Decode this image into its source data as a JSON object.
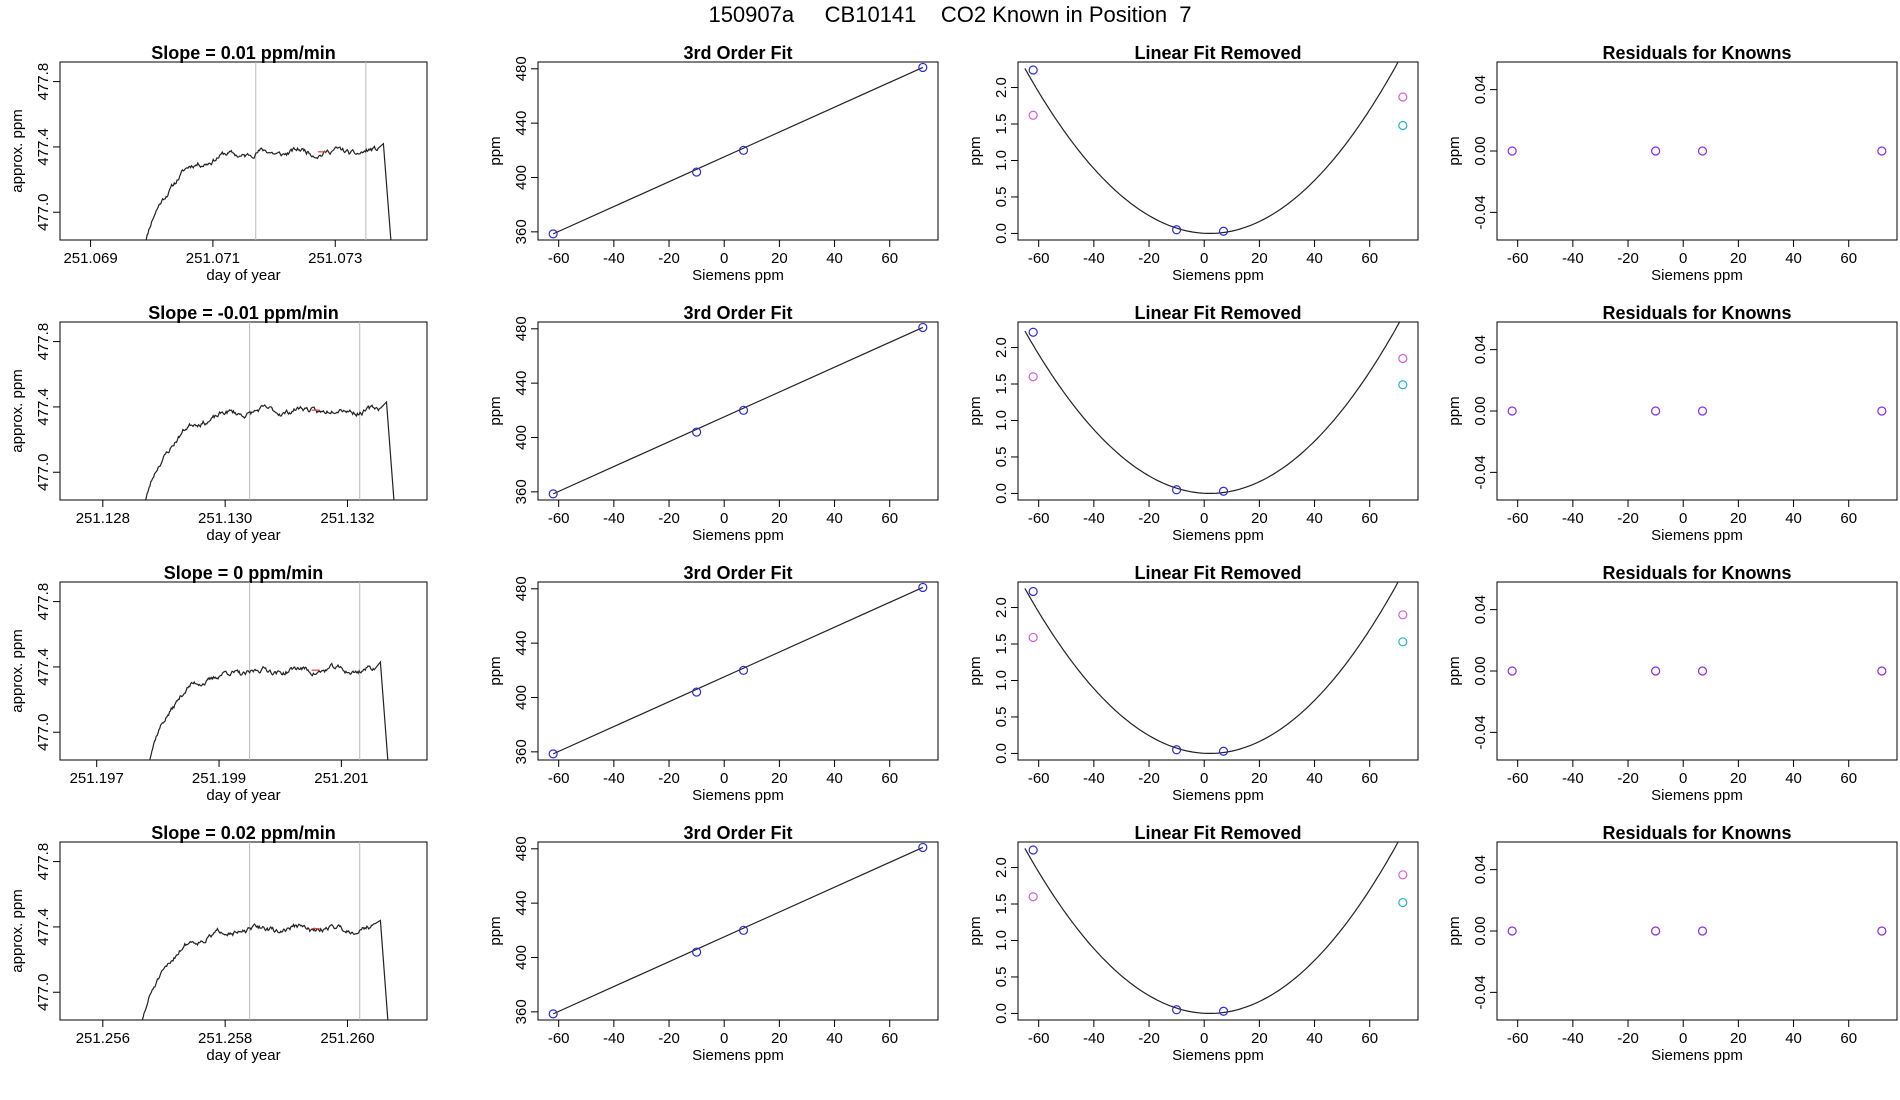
{
  "figure_title": "150907a     CB10141    CO2 Known in Position  7",
  "colors": {
    "axis": "#000000",
    "curve": "#222222",
    "vline": "#bbbbbb",
    "blue": "#2b2bd9",
    "magenta": "#d65cd6",
    "cyan": "#20b6c8",
    "purple": "#8a2be2",
    "red": "#e04040"
  },
  "chart_data": [
    {
      "type": "line",
      "title": "Slope =  0.01  ppm/min",
      "xlabel": "day of year",
      "ylabel": "approx. ppm",
      "xlim": [
        251.0685,
        251.0745
      ],
      "ylim": [
        476.83,
        477.92
      ],
      "xticks": [
        251.069,
        251.071,
        251.073
      ],
      "xtick_labels": [
        "251.069",
        "251.071",
        "251.073"
      ],
      "yticks": [
        477.0,
        477.4,
        477.8
      ],
      "ytick_labels": [
        "477.0",
        "477.4",
        "477.8"
      ],
      "vlines": [
        251.0717,
        251.0735
      ],
      "trace": {
        "x_start": 251.06985,
        "x_plateau": 251.0737,
        "x_end": 251.07395,
        "level": 477.37,
        "rise_start": 476.75,
        "seed": 11
      }
    },
    {
      "type": "line",
      "title": "3rd Order Fit",
      "xlabel": "Siemens ppm",
      "ylabel": "ppm",
      "xlim": [
        -67.5,
        77.5
      ],
      "ylim": [
        354,
        485
      ],
      "xticks": [
        -60,
        -40,
        -20,
        0,
        20,
        40,
        60
      ],
      "xtick_labels": [
        "-60",
        "-40",
        "-20",
        "0",
        "20",
        "40",
        "60"
      ],
      "yticks": [
        360,
        400,
        440,
        480
      ],
      "ytick_labels": [
        "360",
        "400",
        "440",
        "480"
      ],
      "line": {
        "x": [
          -62,
          72
        ],
        "y": [
          358.5,
          481
        ]
      },
      "points": [
        {
          "x": -62,
          "y": 358.5,
          "color": "blue"
        },
        {
          "x": -10,
          "y": 404,
          "color": "blue"
        },
        {
          "x": 7,
          "y": 420,
          "color": "blue"
        },
        {
          "x": 72,
          "y": 481,
          "color": "blue"
        }
      ]
    },
    {
      "type": "scatter",
      "title": "Linear Fit Removed",
      "xlabel": "Siemens ppm",
      "ylabel": "ppm",
      "xlim": [
        -67.5,
        77.5
      ],
      "ylim": [
        -0.09,
        2.35
      ],
      "xticks": [
        -60,
        -40,
        -20,
        0,
        20,
        40,
        60
      ],
      "xtick_labels": [
        "-60",
        "-40",
        "-20",
        "0",
        "20",
        "40",
        "60"
      ],
      "yticks": [
        0.0,
        0.5,
        1.0,
        1.5,
        2.0
      ],
      "ytick_labels": [
        "0.0",
        "0.5",
        "1.0",
        "1.5",
        "2.0"
      ],
      "curve": {
        "a": 0.000504,
        "h": 2,
        "k": 0.0
      },
      "points": [
        {
          "x": -62,
          "y": 2.24,
          "color": "blue"
        },
        {
          "x": -62,
          "y": 1.62,
          "color": "magenta"
        },
        {
          "x": -10,
          "y": 0.05,
          "color": "blue"
        },
        {
          "x": 7,
          "y": 0.03,
          "color": "blue"
        },
        {
          "x": 72,
          "y": 1.87,
          "color": "magenta"
        },
        {
          "x": 72,
          "y": 1.48,
          "color": "cyan"
        }
      ]
    },
    {
      "type": "scatter",
      "title": "Residuals for Knowns",
      "xlabel": "Siemens ppm",
      "ylabel": "ppm",
      "xlim": [
        -67.5,
        77.5
      ],
      "ylim": [
        -0.058,
        0.058
      ],
      "xticks": [
        -60,
        -40,
        -20,
        0,
        20,
        40,
        60
      ],
      "xtick_labels": [
        "-60",
        "-40",
        "-20",
        "0",
        "20",
        "40",
        "60"
      ],
      "yticks": [
        -0.04,
        0.0,
        0.04
      ],
      "ytick_labels": [
        "-0.04",
        "0.00",
        "0.04"
      ],
      "points": [
        {
          "x": -62,
          "y": 0,
          "color": "purple"
        },
        {
          "x": -10,
          "y": 0,
          "color": "purple"
        },
        {
          "x": 7,
          "y": 0,
          "color": "purple"
        },
        {
          "x": 72,
          "y": 0,
          "color": "purple"
        }
      ]
    },
    {
      "type": "line",
      "title": "Slope =  -0.01  ppm/min",
      "xlabel": "day of year",
      "ylabel": "approx. ppm",
      "xlim": [
        251.1273,
        251.1333
      ],
      "ylim": [
        476.83,
        477.92
      ],
      "xticks": [
        251.128,
        251.13,
        251.132
      ],
      "xtick_labels": [
        "251.128",
        "251.130",
        "251.132"
      ],
      "yticks": [
        477.0,
        477.4,
        477.8
      ],
      "ytick_labels": [
        "477.0",
        "477.4",
        "477.8"
      ],
      "vlines": [
        251.1304,
        251.1322
      ],
      "trace": {
        "x_start": 251.12865,
        "x_plateau": 251.13255,
        "x_end": 251.1328,
        "level": 477.38,
        "rise_start": 476.75,
        "seed": 23
      }
    },
    {
      "type": "line",
      "title": "3rd Order Fit",
      "xlabel": "Siemens ppm",
      "ylabel": "ppm",
      "xlim": [
        -67.5,
        77.5
      ],
      "ylim": [
        354,
        485
      ],
      "xticks": [
        -60,
        -40,
        -20,
        0,
        20,
        40,
        60
      ],
      "xtick_labels": [
        "-60",
        "-40",
        "-20",
        "0",
        "20",
        "40",
        "60"
      ],
      "yticks": [
        360,
        400,
        440,
        480
      ],
      "ytick_labels": [
        "360",
        "400",
        "440",
        "480"
      ],
      "line": {
        "x": [
          -62,
          72
        ],
        "y": [
          358.5,
          481
        ]
      },
      "points": [
        {
          "x": -62,
          "y": 358.5,
          "color": "blue"
        },
        {
          "x": -10,
          "y": 404,
          "color": "blue"
        },
        {
          "x": 7,
          "y": 420,
          "color": "blue"
        },
        {
          "x": 72,
          "y": 481,
          "color": "blue"
        }
      ]
    },
    {
      "type": "scatter",
      "title": "Linear Fit Removed",
      "xlabel": "Siemens ppm",
      "ylabel": "ppm",
      "xlim": [
        -67.5,
        77.5
      ],
      "ylim": [
        -0.09,
        2.35
      ],
      "xticks": [
        -60,
        -40,
        -20,
        0,
        20,
        40,
        60
      ],
      "xtick_labels": [
        "-60",
        "-40",
        "-20",
        "0",
        "20",
        "40",
        "60"
      ],
      "yticks": [
        0.0,
        0.5,
        1.0,
        1.5,
        2.0
      ],
      "ytick_labels": [
        "0.0",
        "0.5",
        "1.0",
        "1.5",
        "2.0"
      ],
      "curve": {
        "a": 0.000496,
        "h": 2,
        "k": 0.0
      },
      "points": [
        {
          "x": -62,
          "y": 2.21,
          "color": "blue"
        },
        {
          "x": -62,
          "y": 1.6,
          "color": "magenta"
        },
        {
          "x": -10,
          "y": 0.05,
          "color": "blue"
        },
        {
          "x": 7,
          "y": 0.03,
          "color": "blue"
        },
        {
          "x": 72,
          "y": 1.85,
          "color": "magenta"
        },
        {
          "x": 72,
          "y": 1.49,
          "color": "cyan"
        }
      ]
    },
    {
      "type": "scatter",
      "title": "Residuals for Knowns",
      "xlabel": "Siemens ppm",
      "ylabel": "ppm",
      "xlim": [
        -67.5,
        77.5
      ],
      "ylim": [
        -0.058,
        0.058
      ],
      "xticks": [
        -60,
        -40,
        -20,
        0,
        20,
        40,
        60
      ],
      "xtick_labels": [
        "-60",
        "-40",
        "-20",
        "0",
        "20",
        "40",
        "60"
      ],
      "yticks": [
        -0.04,
        0.0,
        0.04
      ],
      "ytick_labels": [
        "-0.04",
        "0.00",
        "0.04"
      ],
      "points": [
        {
          "x": -62,
          "y": 0,
          "color": "purple"
        },
        {
          "x": -10,
          "y": 0,
          "color": "purple"
        },
        {
          "x": 7,
          "y": 0,
          "color": "purple"
        },
        {
          "x": 72,
          "y": 0,
          "color": "purple"
        }
      ]
    },
    {
      "type": "line",
      "title": "Slope =  0  ppm/min",
      "xlabel": "day of year",
      "ylabel": "approx. ppm",
      "xlim": [
        251.1964,
        251.2024
      ],
      "ylim": [
        476.83,
        477.92
      ],
      "xticks": [
        251.197,
        251.199,
        251.201
      ],
      "xtick_labels": [
        "251.197",
        "251.199",
        "251.201"
      ],
      "yticks": [
        477.0,
        477.4,
        477.8
      ],
      "ytick_labels": [
        "477.0",
        "477.4",
        "477.8"
      ],
      "vlines": [
        251.1995,
        251.2013
      ],
      "trace": {
        "x_start": 251.1978,
        "x_plateau": 251.20155,
        "x_end": 251.2018,
        "level": 477.38,
        "rise_start": 476.75,
        "seed": 37
      }
    },
    {
      "type": "line",
      "title": "3rd Order Fit",
      "xlabel": "Siemens ppm",
      "ylabel": "ppm",
      "xlim": [
        -67.5,
        77.5
      ],
      "ylim": [
        354,
        485
      ],
      "xticks": [
        -60,
        -40,
        -20,
        0,
        20,
        40,
        60
      ],
      "xtick_labels": [
        "-60",
        "-40",
        "-20",
        "0",
        "20",
        "40",
        "60"
      ],
      "yticks": [
        360,
        400,
        440,
        480
      ],
      "ytick_labels": [
        "360",
        "400",
        "440",
        "480"
      ],
      "line": {
        "x": [
          -62,
          72
        ],
        "y": [
          358.5,
          481
        ]
      },
      "points": [
        {
          "x": -62,
          "y": 358.5,
          "color": "blue"
        },
        {
          "x": -10,
          "y": 404,
          "color": "blue"
        },
        {
          "x": 7,
          "y": 420,
          "color": "blue"
        },
        {
          "x": 72,
          "y": 481,
          "color": "blue"
        }
      ]
    },
    {
      "type": "scatter",
      "title": "Linear Fit Removed",
      "xlabel": "Siemens ppm",
      "ylabel": "ppm",
      "xlim": [
        -67.5,
        77.5
      ],
      "ylim": [
        -0.09,
        2.35
      ],
      "xticks": [
        -60,
        -40,
        -20,
        0,
        20,
        40,
        60
      ],
      "xtick_labels": [
        "-60",
        "-40",
        "-20",
        "0",
        "20",
        "40",
        "60"
      ],
      "yticks": [
        0.0,
        0.5,
        1.0,
        1.5,
        2.0
      ],
      "ytick_labels": [
        "0.0",
        "0.5",
        "1.0",
        "1.5",
        "2.0"
      ],
      "curve": {
        "a": 0.000504,
        "h": 2,
        "k": 0.0
      },
      "points": [
        {
          "x": -62,
          "y": 2.22,
          "color": "blue"
        },
        {
          "x": -62,
          "y": 1.59,
          "color": "magenta"
        },
        {
          "x": -10,
          "y": 0.05,
          "color": "blue"
        },
        {
          "x": 7,
          "y": 0.03,
          "color": "blue"
        },
        {
          "x": 72,
          "y": 1.9,
          "color": "magenta"
        },
        {
          "x": 72,
          "y": 1.53,
          "color": "cyan"
        }
      ]
    },
    {
      "type": "scatter",
      "title": "Residuals for Knowns",
      "xlabel": "Siemens ppm",
      "ylabel": "ppm",
      "xlim": [
        -67.5,
        77.5
      ],
      "ylim": [
        -0.058,
        0.058
      ],
      "xticks": [
        -60,
        -40,
        -20,
        0,
        20,
        40,
        60
      ],
      "xtick_labels": [
        "-60",
        "-40",
        "-20",
        "0",
        "20",
        "40",
        "60"
      ],
      "yticks": [
        -0.04,
        0.0,
        0.04
      ],
      "ytick_labels": [
        "-0.04",
        "0.00",
        "0.04"
      ],
      "points": [
        {
          "x": -62,
          "y": 0,
          "color": "purple"
        },
        {
          "x": -10,
          "y": 0,
          "color": "purple"
        },
        {
          "x": 7,
          "y": 0,
          "color": "purple"
        },
        {
          "x": 72,
          "y": 0,
          "color": "purple"
        }
      ]
    },
    {
      "type": "line",
      "title": "Slope =  0.02  ppm/min",
      "xlabel": "day of year",
      "ylabel": "approx. ppm",
      "xlim": [
        251.2553,
        251.2613
      ],
      "ylim": [
        476.83,
        477.92
      ],
      "xticks": [
        251.256,
        251.258,
        251.26
      ],
      "xtick_labels": [
        "251.256",
        "251.258",
        "251.260"
      ],
      "yticks": [
        477.0,
        477.4,
        477.8
      ],
      "ytick_labels": [
        "477.0",
        "477.4",
        "477.8"
      ],
      "vlines": [
        251.2584,
        251.2602
      ],
      "trace": {
        "x_start": 251.2566,
        "x_plateau": 251.26045,
        "x_end": 251.2607,
        "level": 477.39,
        "rise_start": 476.75,
        "seed": 51
      }
    },
    {
      "type": "line",
      "title": "3rd Order Fit",
      "xlabel": "Siemens ppm",
      "ylabel": "ppm",
      "xlim": [
        -67.5,
        77.5
      ],
      "ylim": [
        354,
        485
      ],
      "xticks": [
        -60,
        -40,
        -20,
        0,
        20,
        40,
        60
      ],
      "xtick_labels": [
        "-60",
        "-40",
        "-20",
        "0",
        "20",
        "40",
        "60"
      ],
      "yticks": [
        360,
        400,
        440,
        480
      ],
      "ytick_labels": [
        "360",
        "400",
        "440",
        "480"
      ],
      "line": {
        "x": [
          -62,
          72
        ],
        "y": [
          358.5,
          481
        ]
      },
      "points": [
        {
          "x": -62,
          "y": 358.5,
          "color": "blue"
        },
        {
          "x": -10,
          "y": 404,
          "color": "blue"
        },
        {
          "x": 7,
          "y": 420,
          "color": "blue"
        },
        {
          "x": 72,
          "y": 481,
          "color": "blue"
        }
      ]
    },
    {
      "type": "scatter",
      "title": "Linear Fit Removed",
      "xlabel": "Siemens ppm",
      "ylabel": "ppm",
      "xlim": [
        -67.5,
        77.5
      ],
      "ylim": [
        -0.09,
        2.35
      ],
      "xticks": [
        -60,
        -40,
        -20,
        0,
        20,
        40,
        60
      ],
      "xtick_labels": [
        "-60",
        "-40",
        "-20",
        "0",
        "20",
        "40",
        "60"
      ],
      "yticks": [
        0.0,
        0.5,
        1.0,
        1.5,
        2.0
      ],
      "ytick_labels": [
        "0.0",
        "0.5",
        "1.0",
        "1.5",
        "2.0"
      ],
      "curve": {
        "a": 0.000504,
        "h": 2,
        "k": 0.0
      },
      "points": [
        {
          "x": -62,
          "y": 2.24,
          "color": "blue"
        },
        {
          "x": -62,
          "y": 1.6,
          "color": "magenta"
        },
        {
          "x": -10,
          "y": 0.05,
          "color": "blue"
        },
        {
          "x": 7,
          "y": 0.03,
          "color": "blue"
        },
        {
          "x": 72,
          "y": 1.9,
          "color": "magenta"
        },
        {
          "x": 72,
          "y": 1.52,
          "color": "cyan"
        }
      ]
    },
    {
      "type": "scatter",
      "title": "Residuals for Knowns",
      "xlabel": "Siemens ppm",
      "ylabel": "ppm",
      "xlim": [
        -67.5,
        77.5
      ],
      "ylim": [
        -0.058,
        0.058
      ],
      "xticks": [
        -60,
        -40,
        -20,
        0,
        20,
        40,
        60
      ],
      "xtick_labels": [
        "-60",
        "-40",
        "-20",
        "0",
        "20",
        "40",
        "60"
      ],
      "yticks": [
        -0.04,
        0.0,
        0.04
      ],
      "ytick_labels": [
        "-0.04",
        "0.00",
        "0.04"
      ],
      "points": [
        {
          "x": -62,
          "y": 0,
          "color": "purple"
        },
        {
          "x": -10,
          "y": 0,
          "color": "purple"
        },
        {
          "x": 7,
          "y": 0,
          "color": "purple"
        },
        {
          "x": 72,
          "y": 0,
          "color": "purple"
        }
      ]
    }
  ]
}
